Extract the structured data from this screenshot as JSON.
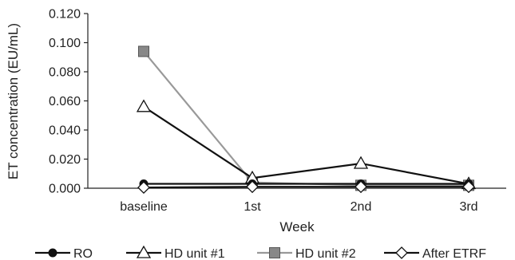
{
  "chart_data": {
    "type": "line",
    "title": "",
    "xlabel": "Week",
    "ylabel": "ET concentration (EU/mL)",
    "categories": [
      "baseline",
      "1st",
      "2nd",
      "3rd"
    ],
    "ylim": [
      0,
      0.12
    ],
    "yticks": [
      "0.000",
      "0.020",
      "0.040",
      "0.060",
      "0.080",
      "0.100",
      "0.120"
    ],
    "ytick_values": [
      0,
      0.02,
      0.04,
      0.06,
      0.08,
      0.1,
      0.12
    ],
    "grid": false,
    "legend_position": "bottom",
    "series": [
      {
        "name": "RO",
        "values": [
          0.003,
          0.003,
          0.003,
          0.003
        ],
        "color": "#111111",
        "marker": "filled-circle"
      },
      {
        "name": "HD unit #1",
        "values": [
          0.056,
          0.007,
          0.017,
          0.003
        ],
        "color": "#111111",
        "marker": "open-triangle"
      },
      {
        "name": "HD unit #2",
        "values": [
          0.094,
          0.004,
          0.002,
          0.002
        ],
        "color": "#999999",
        "marker": "filled-square"
      },
      {
        "name": "After ETRF",
        "values": [
          0.0005,
          0.001,
          0.001,
          0.001
        ],
        "color": "#111111",
        "marker": "open-diamond"
      }
    ]
  }
}
